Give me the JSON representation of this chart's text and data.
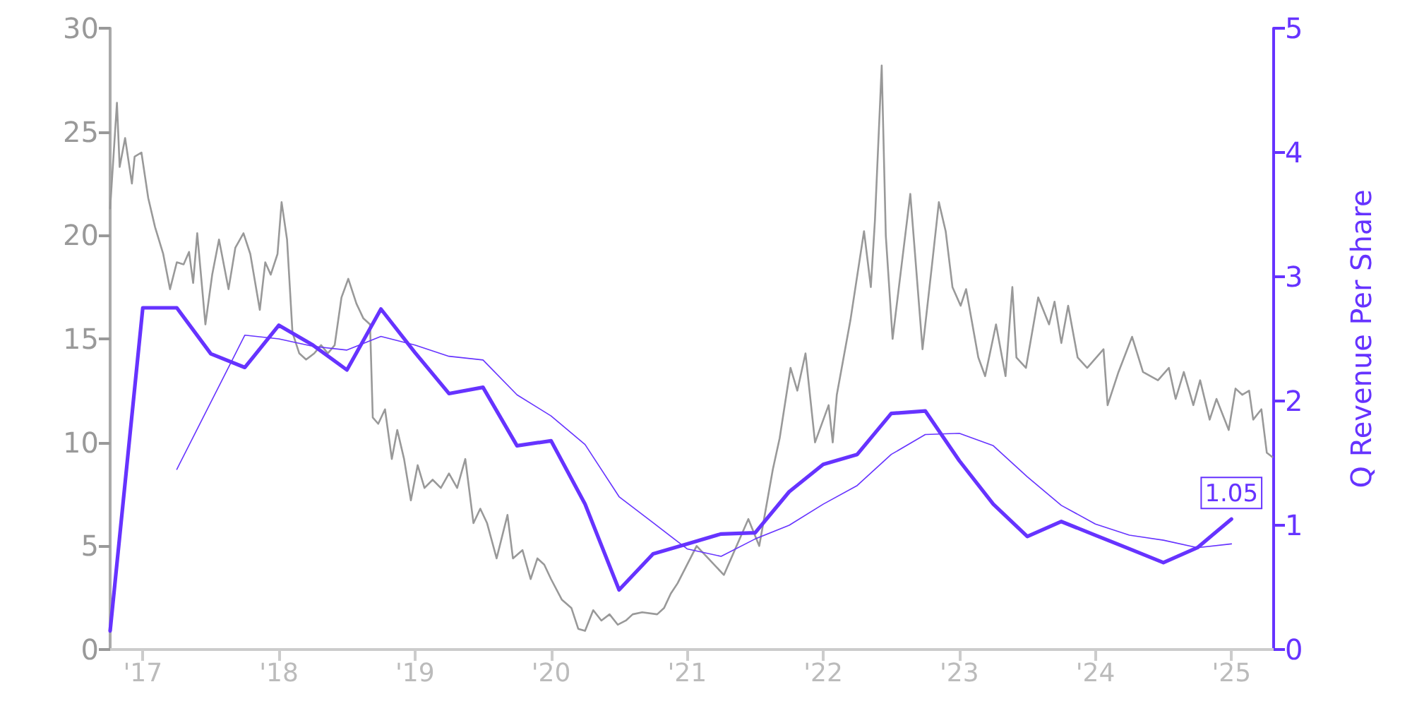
{
  "chart_data": {
    "type": "line",
    "y2label": "Q Revenue Per Share",
    "xlim": [
      2016.76,
      2025.31
    ],
    "xticks": [
      {
        "value": 2017,
        "label": "'17"
      },
      {
        "value": 2018,
        "label": "'18"
      },
      {
        "value": 2019,
        "label": "'19"
      },
      {
        "value": 2020,
        "label": "'20"
      },
      {
        "value": 2021,
        "label": "'21"
      },
      {
        "value": 2022,
        "label": "'22"
      },
      {
        "value": 2023,
        "label": "'23"
      },
      {
        "value": 2024,
        "label": "'24"
      },
      {
        "value": 2025,
        "label": "'25"
      }
    ],
    "ylim": [
      0,
      30
    ],
    "yticks": [
      0,
      5,
      10,
      15,
      20,
      25,
      30
    ],
    "y2lim": [
      0,
      5
    ],
    "y2ticks": [
      0,
      1,
      2,
      3,
      4,
      5
    ],
    "grid": false,
    "marker": "none",
    "line_style": "solid",
    "series": [
      {
        "color": "#999999",
        "axis": "y",
        "x": [
          2016.76,
          2016.81,
          2016.83,
          2016.87,
          2016.92,
          2016.94,
          2016.99,
          2017.04,
          2017.09,
          2017.15,
          2017.2,
          2017.25,
          2017.3,
          2017.34,
          2017.37,
          2017.4,
          2017.46,
          2017.51,
          2017.56,
          2017.63,
          2017.68,
          2017.74,
          2017.79,
          2017.86,
          2017.9,
          2017.94,
          2017.99,
          2018.02,
          2018.06,
          2018.1,
          2018.15,
          2018.2,
          2018.26,
          2018.31,
          2018.36,
          2018.41,
          2018.46,
          2018.51,
          2018.57,
          2018.62,
          2018.67,
          2018.69,
          2018.73,
          2018.78,
          2018.83,
          2018.87,
          2018.92,
          2018.97,
          2019.02,
          2019.07,
          2019.13,
          2019.19,
          2019.25,
          2019.31,
          2019.37,
          2019.43,
          2019.48,
          2019.53,
          2019.6,
          2019.68,
          2019.72,
          2019.79,
          2019.85,
          2019.9,
          2019.95,
          2020.0,
          2020.08,
          2020.15,
          2020.2,
          2020.25,
          2020.31,
          2020.37,
          2020.43,
          2020.49,
          2020.55,
          2020.6,
          2020.67,
          2020.78,
          2020.83,
          2020.88,
          2020.93,
          2021.07,
          2021.27,
          2021.45,
          2021.53,
          2021.63,
          2021.68,
          2021.76,
          2021.81,
          2021.87,
          2021.94,
          2022.04,
          2022.07,
          2022.1,
          2022.2,
          2022.3,
          2022.35,
          2022.38,
          2022.43,
          2022.46,
          2022.51,
          2022.56,
          2022.64,
          2022.73,
          2022.8,
          2022.85,
          2022.9,
          2022.95,
          2023.01,
          2023.05,
          2023.14,
          2023.19,
          2023.27,
          2023.34,
          2023.39,
          2023.42,
          2023.49,
          2023.58,
          2023.66,
          2023.7,
          2023.75,
          2023.8,
          2023.87,
          2023.94,
          2024.06,
          2024.09,
          2024.17,
          2024.27,
          2024.35,
          2024.46,
          2024.54,
          2024.59,
          2024.65,
          2024.72,
          2024.77,
          2024.84,
          2024.89,
          2024.98,
          2025.03,
          2025.08,
          2025.13,
          2025.16,
          2025.22,
          2025.26,
          2025.3
        ],
        "values": [
          21.3,
          26.4,
          23.3,
          24.7,
          22.5,
          23.8,
          24.0,
          21.8,
          20.4,
          19.1,
          17.4,
          18.7,
          18.6,
          19.2,
          17.7,
          20.1,
          15.7,
          18.1,
          19.8,
          17.4,
          19.4,
          20.1,
          19.1,
          16.4,
          18.7,
          18.1,
          19.1,
          21.6,
          19.8,
          15.3,
          14.3,
          14.0,
          14.3,
          14.7,
          14.3,
          14.7,
          17.0,
          17.9,
          16.7,
          16.0,
          15.7,
          11.2,
          10.9,
          11.6,
          9.2,
          10.6,
          9.2,
          7.2,
          8.9,
          7.8,
          8.2,
          7.8,
          8.5,
          7.8,
          9.2,
          6.1,
          6.8,
          6.1,
          4.4,
          6.5,
          4.4,
          4.8,
          3.4,
          4.4,
          4.1,
          3.4,
          2.4,
          2.0,
          1.0,
          0.9,
          1.9,
          1.4,
          1.7,
          1.2,
          1.4,
          1.7,
          1.8,
          1.7,
          2.0,
          2.7,
          3.2,
          5.0,
          3.6,
          6.3,
          5.0,
          8.7,
          10.2,
          13.6,
          12.5,
          14.3,
          10.0,
          11.8,
          10.0,
          12.3,
          15.9,
          20.2,
          17.5,
          20.7,
          28.2,
          20.0,
          15.0,
          17.7,
          22.0,
          14.5,
          18.6,
          21.6,
          20.2,
          17.5,
          16.6,
          17.4,
          14.1,
          13.2,
          15.7,
          13.2,
          17.5,
          14.1,
          13.6,
          17.0,
          15.7,
          16.8,
          14.8,
          16.6,
          14.1,
          13.6,
          14.5,
          11.8,
          13.4,
          15.1,
          13.4,
          13.0,
          13.6,
          12.1,
          13.4,
          11.8,
          13.0,
          11.1,
          12.1,
          10.6,
          12.6,
          12.3,
          12.5,
          11.1,
          11.6,
          9.5,
          9.3
        ]
      },
      {
        "color": "#6633ff",
        "axis": "y2",
        "x": [
          2017.25,
          2017.75,
          2018.0,
          2018.25,
          2018.5,
          2018.75,
          2019.0,
          2019.25,
          2019.5,
          2019.75,
          2020.0,
          2020.25,
          2020.5,
          2020.75,
          2021.0,
          2021.25,
          2021.5,
          2021.75,
          2022.0,
          2022.25,
          2022.5,
          2022.75,
          2023.0,
          2023.25,
          2023.5,
          2023.75,
          2024.0,
          2024.25,
          2024.5,
          2024.75,
          2025.0
        ],
        "values": [
          1.45,
          2.53,
          2.5,
          2.44,
          2.41,
          2.52,
          2.45,
          2.36,
          2.33,
          2.05,
          1.88,
          1.65,
          1.23,
          1.02,
          0.81,
          0.75,
          0.89,
          1.0,
          1.17,
          1.32,
          1.57,
          1.73,
          1.74,
          1.64,
          1.39,
          1.16,
          1.01,
          0.92,
          0.88,
          0.82,
          0.85
        ]
      },
      {
        "color": "#6633ff",
        "axis": "y2",
        "x": [
          2016.76,
          2017.0,
          2017.25,
          2017.5,
          2017.75,
          2018.0,
          2018.25,
          2018.5,
          2018.75,
          2019.0,
          2019.25,
          2019.5,
          2019.75,
          2020.0,
          2020.25,
          2020.5,
          2020.75,
          2021.0,
          2021.25,
          2021.5,
          2021.75,
          2022.0,
          2022.25,
          2022.5,
          2022.75,
          2023.0,
          2023.25,
          2023.5,
          2023.75,
          2024.0,
          2024.25,
          2024.5,
          2024.75,
          2025.0
        ],
        "values": [
          0.15,
          2.75,
          2.75,
          2.38,
          2.27,
          2.61,
          2.45,
          2.25,
          2.74,
          2.39,
          2.06,
          2.11,
          1.64,
          1.68,
          1.17,
          0.48,
          0.77,
          0.85,
          0.93,
          0.94,
          1.27,
          1.49,
          1.57,
          1.9,
          1.92,
          1.52,
          1.17,
          0.91,
          1.03,
          0.92,
          0.81,
          0.7,
          0.82,
          1.05
        ],
        "value_labels": [
          null,
          null,
          null,
          null,
          null,
          null,
          null,
          null,
          null,
          null,
          null,
          null,
          null,
          null,
          null,
          null,
          null,
          null,
          null,
          null,
          null,
          null,
          null,
          null,
          null,
          null,
          null,
          null,
          null,
          null,
          null,
          null,
          null,
          "1.05"
        ]
      }
    ]
  }
}
